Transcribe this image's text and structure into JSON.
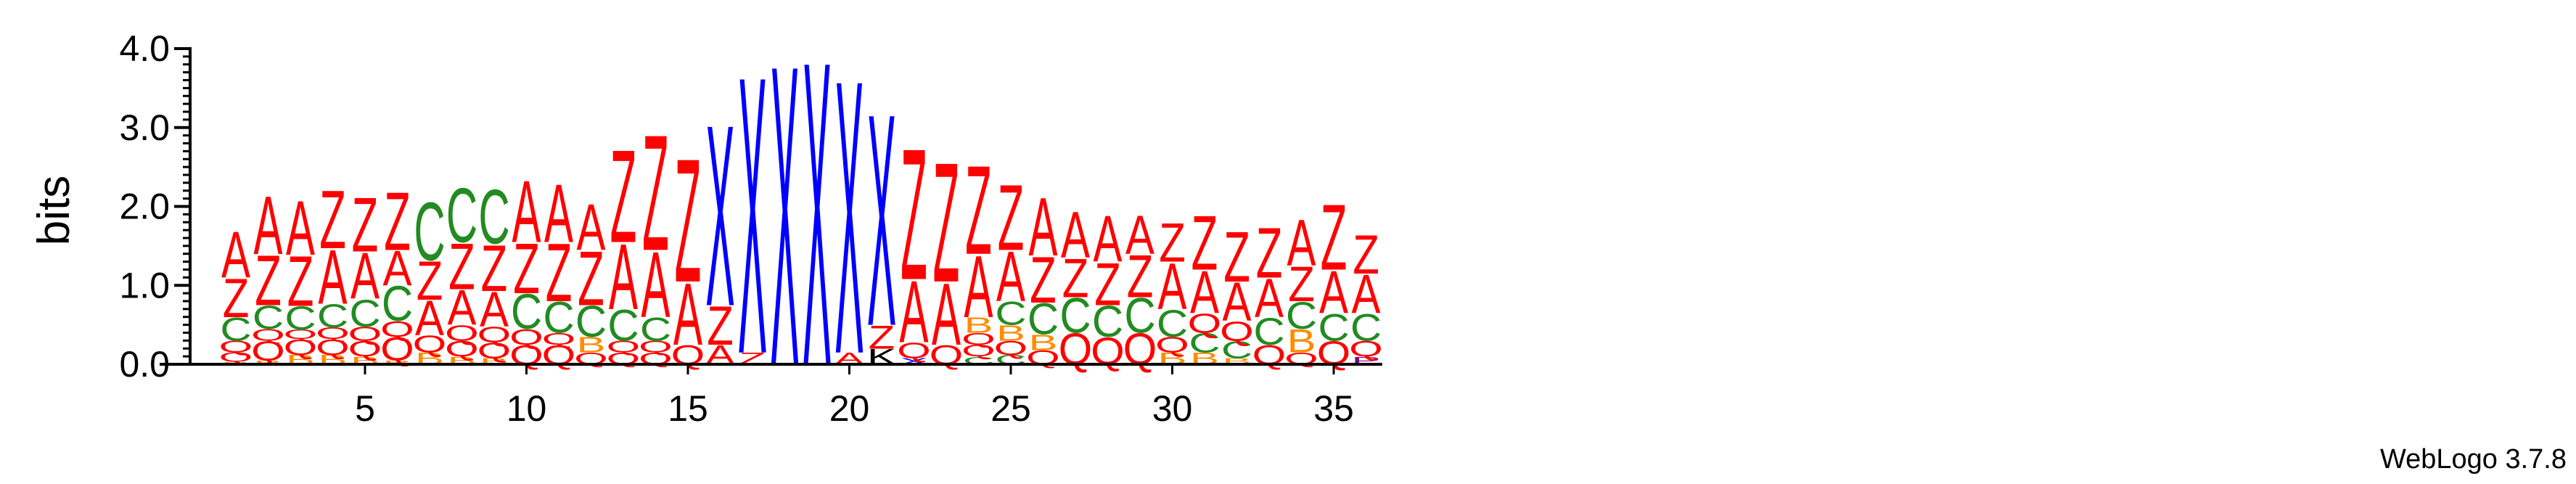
{
  "chart_data": {
    "type": "sequence-logo",
    "ylabel": "bits",
    "ylim": [
      0,
      4.0
    ],
    "y_ticks": [
      "0.0",
      "1.0",
      "2.0",
      "3.0",
      "4.0"
    ],
    "x_ticks": [
      5,
      10,
      15,
      20,
      25,
      30,
      35
    ],
    "positions": 36,
    "credit": "WebLogo 3.7.8",
    "colors": {
      "A": "#ff0000",
      "Z": "#ff0000",
      "X": "#0000ff",
      "C": "#228b22",
      "Q": "#ff0000",
      "B": "#ff8c00",
      "P": "#800080"
    },
    "columns": [
      [
        [
          "B",
          0.03
        ],
        [
          "Q",
          0.12
        ],
        [
          "Q",
          0.15
        ],
        [
          "C",
          0.3
        ],
        [
          "Z",
          0.5
        ],
        [
          "A",
          0.6
        ]
      ],
      [
        [
          "B",
          0.05
        ],
        [
          "Q",
          0.25
        ],
        [
          "Q",
          0.15
        ],
        [
          "C",
          0.3
        ],
        [
          "Z",
          0.65
        ],
        [
          "A",
          0.75
        ]
      ],
      [
        [
          "B",
          0.12
        ],
        [
          "Q",
          0.2
        ],
        [
          "Q",
          0.12
        ],
        [
          "C",
          0.3
        ],
        [
          "Z",
          0.65
        ],
        [
          "A",
          0.7
        ]
      ],
      [
        [
          "B",
          0.12
        ],
        [
          "Q",
          0.2
        ],
        [
          "Q",
          0.15
        ],
        [
          "C",
          0.3
        ],
        [
          "A",
          0.7
        ],
        [
          "Z",
          0.75
        ]
      ],
      [
        [
          "B",
          0.1
        ],
        [
          "Q",
          0.2
        ],
        [
          "Q",
          0.18
        ],
        [
          "C",
          0.35
        ],
        [
          "A",
          0.6
        ],
        [
          "Z",
          0.7
        ]
      ],
      [
        [
          "B",
          0.05
        ],
        [
          "Q",
          0.3
        ],
        [
          "Q",
          0.2
        ],
        [
          "C",
          0.45
        ],
        [
          "A",
          0.45
        ],
        [
          "Z",
          0.75
        ]
      ],
      [
        [
          "B",
          0.15
        ],
        [
          "Q",
          0.22
        ],
        [
          "A",
          0.45
        ],
        [
          "Z",
          0.5
        ],
        [
          "C",
          0.75
        ]
      ],
      [
        [
          "B",
          0.1
        ],
        [
          "Q",
          0.2
        ],
        [
          "Q",
          0.2
        ],
        [
          "A",
          0.45
        ],
        [
          "Z",
          0.6
        ],
        [
          "C",
          0.7
        ]
      ],
      [
        [
          "B",
          0.08
        ],
        [
          "Q",
          0.2
        ],
        [
          "Q",
          0.2
        ],
        [
          "A",
          0.45
        ],
        [
          "Z",
          0.6
        ],
        [
          "C",
          0.7
        ]
      ],
      [
        [
          "Q",
          0.25
        ],
        [
          "Q",
          0.2
        ],
        [
          "C",
          0.45
        ],
        [
          "Z",
          0.65
        ],
        [
          "A",
          0.8
        ]
      ],
      [
        [
          "Q",
          0.25
        ],
        [
          "Q",
          0.15
        ],
        [
          "C",
          0.4
        ],
        [
          "Z",
          0.75
        ],
        [
          "A",
          0.75
        ]
      ],
      [
        [
          "Q",
          0.15
        ],
        [
          "B",
          0.2
        ],
        [
          "C",
          0.4
        ],
        [
          "Z",
          0.7
        ],
        [
          "A",
          0.6
        ]
      ],
      [
        [
          "Q",
          0.15
        ],
        [
          "Q",
          0.15
        ],
        [
          "C",
          0.4
        ],
        [
          "A",
          0.85
        ],
        [
          "Z",
          1.2
        ]
      ],
      [
        [
          "Q",
          0.15
        ],
        [
          "Q",
          0.15
        ],
        [
          "C",
          0.3
        ],
        [
          "A",
          0.85
        ],
        [
          "Z",
          1.5
        ]
      ],
      [
        [
          "Q",
          0.25
        ],
        [
          "A",
          0.8
        ],
        [
          "Z",
          1.6
        ]
      ],
      [
        [
          "A",
          0.25
        ],
        [
          "Z",
          0.5
        ],
        [
          "X",
          2.35
        ]
      ],
      [
        [
          "Z",
          0.15
        ],
        [
          "X",
          3.6
        ]
      ],
      [
        [
          "X",
          3.9
        ]
      ],
      [
        [
          "X",
          3.95
        ]
      ],
      [
        [
          "A",
          0.15
        ],
        [
          "X",
          3.55
        ]
      ],
      [
        [
          "K",
          0.2
        ],
        [
          "Z",
          0.3
        ],
        [
          "X",
          2.75
        ]
      ],
      [
        [
          "X",
          0.08
        ],
        [
          "Q",
          0.2
        ],
        [
          "A",
          0.8
        ],
        [
          "Z",
          1.7
        ]
      ],
      [
        [
          "Q",
          0.25
        ],
        [
          "A",
          0.8
        ],
        [
          "Z",
          1.55
        ]
      ],
      [
        [
          "C",
          0.1
        ],
        [
          "Q",
          0.15
        ],
        [
          "Q",
          0.15
        ],
        [
          "B",
          0.2
        ],
        [
          "A",
          0.8
        ],
        [
          "Z",
          1.15
        ]
      ],
      [
        [
          "C",
          0.12
        ],
        [
          "Q",
          0.18
        ],
        [
          "B",
          0.2
        ],
        [
          "C",
          0.3
        ],
        [
          "A",
          0.65
        ],
        [
          "Z",
          0.85
        ]
      ],
      [
        [
          "Q",
          0.18
        ],
        [
          "B",
          0.2
        ],
        [
          "C",
          0.4
        ],
        [
          "Z",
          0.6
        ],
        [
          "A",
          0.75
        ]
      ],
      [
        [
          "Q",
          0.4
        ],
        [
          "C",
          0.45
        ],
        [
          "Z",
          0.5
        ],
        [
          "A",
          0.6
        ]
      ],
      [
        [
          "Q",
          0.35
        ],
        [
          "C",
          0.4
        ],
        [
          "Z",
          0.55
        ],
        [
          "A",
          0.6
        ]
      ],
      [
        [
          "Q",
          0.4
        ],
        [
          "C",
          0.45
        ],
        [
          "Z",
          0.55
        ],
        [
          "A",
          0.5
        ]
      ],
      [
        [
          "B",
          0.15
        ],
        [
          "Q",
          0.2
        ],
        [
          "C",
          0.35
        ],
        [
          "A",
          0.6
        ],
        [
          "Z",
          0.5
        ]
      ],
      [
        [
          "B",
          0.15
        ],
        [
          "C",
          0.25
        ],
        [
          "Q",
          0.25
        ],
        [
          "A",
          0.55
        ],
        [
          "Z",
          0.7
        ]
      ],
      [
        [
          "B",
          0.08
        ],
        [
          "C",
          0.22
        ],
        [
          "Q",
          0.25
        ],
        [
          "A",
          0.5
        ],
        [
          "Z",
          0.65
        ]
      ],
      [
        [
          "Q",
          0.25
        ],
        [
          "C",
          0.35
        ],
        [
          "A",
          0.5
        ],
        [
          "Z",
          0.65
        ]
      ],
      [
        [
          "Q",
          0.15
        ],
        [
          "B",
          0.3
        ],
        [
          "C",
          0.35
        ],
        [
          "Z",
          0.45
        ],
        [
          "A",
          0.6
        ]
      ],
      [
        [
          "Q",
          0.3
        ],
        [
          "C",
          0.35
        ],
        [
          "A",
          0.55
        ],
        [
          "Z",
          0.85
        ]
      ],
      [
        [
          "P",
          0.1
        ],
        [
          "Q",
          0.2
        ],
        [
          "C",
          0.35
        ],
        [
          "A",
          0.5
        ],
        [
          "Z",
          0.5
        ]
      ]
    ]
  }
}
